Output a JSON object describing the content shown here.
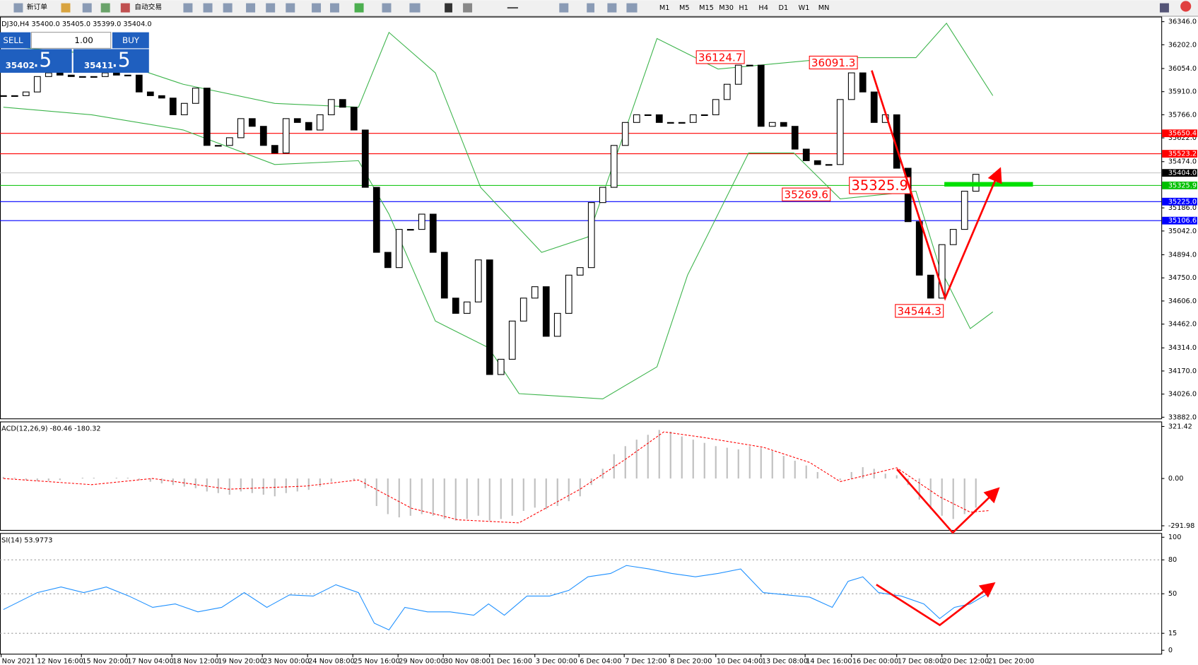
{
  "toolbar": {
    "buttons": [
      "新订单",
      "自动交易"
    ],
    "periods": [
      "M1",
      "M5",
      "M15",
      "M30",
      "H1",
      "H4",
      "D1",
      "W1",
      "MN"
    ]
  },
  "trade_panel": {
    "sell": "SELL",
    "lots": "1.00",
    "buy": "BUY",
    "bid": "35402",
    "bid_pips": ".5",
    "ask": "35411",
    "ask_pips": ".5"
  },
  "chart_data": [
    {
      "type": "candlestick",
      "title": "DJ30,H4  35400.0 35405.0 35399.0 35404.0",
      "values": [
        35885,
        35885,
        35908,
        36004,
        36027,
        36013,
        36004,
        36004,
        36004,
        36027,
        36013,
        36013,
        35908,
        35885,
        35870,
        35766,
        35837,
        35932,
        35575,
        35575,
        35623,
        35742,
        35694,
        35575,
        35528,
        35742,
        35718,
        35671,
        35766,
        35861,
        35813,
        35671,
        35314,
        34909,
        34814,
        35052,
        35052,
        35147,
        34909,
        34624,
        34529,
        34600,
        34862,
        34148,
        34243,
        34481,
        34624,
        34695,
        34386,
        34529,
        34767,
        34814,
        35219,
        35314,
        35575,
        35718,
        35766,
        35766,
        35718,
        35718,
        35718,
        35766,
        35766,
        35861,
        35956,
        36075,
        36075,
        35694,
        35718,
        35694,
        35552,
        35480,
        35456,
        35456,
        35861,
        36027,
        35908,
        35718,
        35766,
        35433,
        35100,
        34767,
        34624,
        34957,
        35052,
        35290,
        35395
      ],
      "color_up": "#ffffff",
      "color_down": "#000000",
      "bands": [
        {
          "color": "#3cb44b",
          "x": [
            0,
            7.8,
            15.9,
            24,
            31.4,
            34.1,
            38.2,
            42.2,
            47.6,
            51.7,
            55.7,
            57.8,
            63.2,
            74,
            80.7,
            83.4,
            87.5
          ],
          "values": [
            36194,
            36146,
            35956,
            35837,
            35813,
            36279,
            36027,
            35314,
            34909,
            35005,
            35813,
            36241,
            36051,
            36122,
            36122,
            36336,
            35885
          ]
        },
        {
          "color": "#3cb44b",
          "x": [
            0,
            7.8,
            15.9,
            24,
            31.4,
            34.1,
            38.2,
            42.9,
            45.6,
            53,
            57.8,
            60.5,
            65.9,
            69.9,
            74,
            80.7,
            82.8,
            85.5,
            87.5
          ],
          "values": [
            35813,
            35766,
            35671,
            35456,
            35480,
            35147,
            34481,
            34315,
            34029,
            33996,
            34196,
            34767,
            35528,
            35528,
            35242,
            35290,
            34814,
            34434,
            34538
          ]
        }
      ],
      "xlim": [
        -0.3,
        102.4
      ],
      "xticks": [
        {
          "value": -0.2,
          "label": "Nov 2021"
        },
        {
          "value": 2.9,
          "label": "12 Nov 16:00"
        },
        {
          "value": 6.9,
          "label": "15 Nov 20:00"
        },
        {
          "value": 10.9,
          "label": "17 Nov 04:00"
        },
        {
          "value": 14.9,
          "label": "18 Nov 12:00"
        },
        {
          "value": 18.9,
          "label": "19 Nov 20:00"
        },
        {
          "value": 22.9,
          "label": "23 Nov 00:00"
        },
        {
          "value": 26.9,
          "label": "24 Nov 08:00"
        },
        {
          "value": 30.9,
          "label": "25 Nov 16:00"
        },
        {
          "value": 34.9,
          "label": "29 Nov 00:00"
        },
        {
          "value": 38.9,
          "label": "30 Nov 08:00"
        },
        {
          "value": 43,
          "label": "1 Dec 16:00"
        },
        {
          "value": 47,
          "label": "3 Dec 00:00"
        },
        {
          "value": 50.9,
          "label": "6 Dec 04:00"
        },
        {
          "value": 54.9,
          "label": "7 Dec 12:00"
        },
        {
          "value": 58.9,
          "label": "8 Dec 20:00"
        },
        {
          "value": 63,
          "label": "10 Dec 04:00"
        },
        {
          "value": 67,
          "label": "13 Dec 08:00"
        },
        {
          "value": 70.9,
          "label": "14 Dec 16:00"
        },
        {
          "value": 75,
          "label": "16 Dec 00:00"
        },
        {
          "value": 79,
          "label": "17 Dec 08:00"
        },
        {
          "value": 83,
          "label": "20 Dec 12:00"
        },
        {
          "value": 87,
          "label": "21 Dec 20:00"
        }
      ],
      "ylim": [
        33872,
        36375
      ],
      "yticks": [
        {
          "value": 36346,
          "label": "36346.0"
        },
        {
          "value": 36202,
          "label": "36202.0"
        },
        {
          "value": 36054,
          "label": "36054.0"
        },
        {
          "value": 35910,
          "label": "35910.0"
        },
        {
          "value": 35766,
          "label": "35766.0"
        },
        {
          "value": 35622,
          "label": "35622.0"
        },
        {
          "value": 35474,
          "label": "35474.0"
        },
        {
          "value": 35186,
          "label": "35186.0"
        },
        {
          "value": 35042,
          "label": "35042.0"
        },
        {
          "value": 34894,
          "label": "34894.0"
        },
        {
          "value": 34750,
          "label": "34750.0"
        },
        {
          "value": 34606,
          "label": "34606.0"
        },
        {
          "value": 34462,
          "label": "34462.0"
        },
        {
          "value": 34314,
          "label": "34314.0"
        },
        {
          "value": 34170,
          "label": "34170.0"
        },
        {
          "value": 34026,
          "label": "34026.0"
        },
        {
          "value": 33882,
          "label": "33882.0"
        }
      ],
      "levels": [
        {
          "value": 35650.4,
          "label": "35650.4",
          "color": "#ff0000"
        },
        {
          "value": 35523.2,
          "label": "35523.2",
          "color": "#ff0000"
        },
        {
          "value": 35404.0,
          "label": "35404.0",
          "color": "#000000"
        },
        {
          "value": 35325.9,
          "label": "35325.9",
          "color": "#00c000"
        },
        {
          "value": 35225.0,
          "label": "35225.0",
          "color": "#0000ff"
        },
        {
          "value": 35106.6,
          "label": "35106.6",
          "color": "#0000ff"
        }
      ],
      "annotations": [
        {
          "x": 63.4,
          "value": 36124.7,
          "label": "36124.7"
        },
        {
          "x": 73.4,
          "value": 36091.3,
          "label": "36091.3"
        },
        {
          "x": 71,
          "value": 35269.6,
          "label": "35269.6"
        },
        {
          "x": 77.5,
          "value": 35325.9,
          "label": "35325.9"
        },
        {
          "x": 81,
          "value": 34544.3,
          "label": "34544.3"
        }
      ]
    },
    {
      "type": "macd",
      "title": "ACD(12,26,9) -80.46 -180.32",
      "values": [
        10,
        5,
        -10,
        -15,
        -15,
        -10,
        0,
        5,
        5,
        0,
        5,
        5,
        -10,
        -20,
        -30,
        -40,
        -50,
        -60,
        -80,
        -90,
        -100,
        -80,
        -90,
        -100,
        -110,
        -90,
        -80,
        -70,
        -50,
        -20,
        0,
        -10,
        -60,
        -170,
        -220,
        -240,
        -230,
        -220,
        -230,
        -250,
        -260,
        -250,
        -230,
        -260,
        -250,
        -230,
        -200,
        -180,
        -190,
        -170,
        -140,
        -110,
        -40,
        60,
        150,
        200,
        240,
        270,
        300,
        290,
        260,
        240,
        220,
        200,
        190,
        180,
        200,
        190,
        170,
        140,
        110,
        80,
        40,
        0,
        -10,
        40,
        70,
        60,
        30,
        20,
        -40,
        -130,
        -190,
        -230,
        -250,
        -220,
        -180
      ],
      "color": "#c0c0c0",
      "signal": {
        "color": "#ff0000",
        "x": [
          0,
          7.8,
          13.2,
          19.9,
          26.7,
          31.4,
          36.1,
          40.2,
          45.6,
          51,
          55.1,
          58.4,
          61.8,
          67.2,
          71.3,
          74,
          79,
          82.8,
          85.5,
          87.2
        ],
        "values": [
          0,
          -38,
          0,
          -66,
          -47,
          -9,
          -184,
          -255,
          -274,
          -66,
          123,
          288,
          255,
          193,
          99,
          -19,
          66,
          -113,
          -208,
          -198
        ]
      },
      "xlim": [
        -0.3,
        102.4
      ],
      "ylim": [
        -320.3,
        349.8
      ],
      "yticks": [
        {
          "value": 321.42,
          "label": "321.42"
        },
        {
          "value": 0,
          "label": "0.00"
        },
        {
          "value": -291.98,
          "label": "-291.98"
        }
      ]
    },
    {
      "type": "line",
      "title": "SI(14) 53.9773",
      "x": [
        0,
        3.0,
        5.1,
        7.1,
        9.1,
        11.1,
        13.2,
        15.2,
        17.2,
        19.3,
        21.3,
        23.3,
        25.3,
        27.4,
        29.4,
        31.4,
        32.8,
        34.1,
        35.5,
        37.5,
        39.5,
        41.6,
        42.9,
        44.3,
        46.3,
        48.3,
        50,
        51.7,
        53.7,
        55.1,
        57.1,
        59.1,
        61.2,
        63.2,
        65.2,
        67.2,
        69.3,
        71.3,
        73.3,
        74.7,
        76,
        77.4,
        79.4,
        81.4,
        82.8,
        84.1,
        85.5,
        87.2
      ],
      "values": [
        36,
        51,
        56,
        51,
        56,
        48,
        38,
        41,
        34,
        38,
        51,
        38,
        49,
        48,
        58,
        51,
        24,
        18,
        38,
        34,
        34,
        31,
        41,
        31,
        48,
        48,
        53,
        65,
        68,
        75,
        72,
        68,
        65,
        68,
        72,
        51,
        49,
        47,
        38,
        61,
        65,
        51,
        48,
        41,
        28,
        38,
        41,
        51
      ],
      "color": "#1e90ff",
      "xlim": [
        -0.3,
        102.4
      ],
      "ylim": [
        -3.4,
        103.4
      ],
      "yticks": [
        100,
        80,
        50,
        15,
        0
      ],
      "grid_dotted": [
        80,
        50,
        15
      ]
    }
  ]
}
